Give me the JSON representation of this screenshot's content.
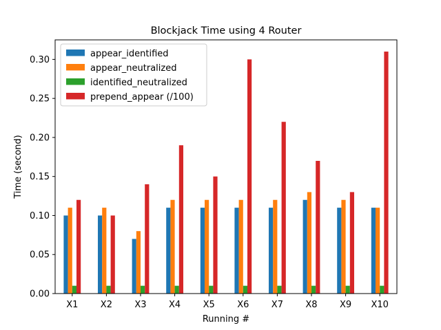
{
  "chart_data": {
    "type": "bar",
    "title": "Blockjack Time using 4 Router",
    "xlabel": "Running #",
    "ylabel": "Time (second)",
    "categories": [
      "X1",
      "X2",
      "X3",
      "X4",
      "X5",
      "X6",
      "X7",
      "X8",
      "X9",
      "X10"
    ],
    "ylim": [
      0,
      0.325
    ],
    "yticks": [
      "0.00",
      "0.05",
      "0.10",
      "0.15",
      "0.20",
      "0.25",
      "0.30"
    ],
    "legend_position": "top-left",
    "grid": false,
    "series": [
      {
        "name": "appear_identified",
        "color": "#1f77b4",
        "values": [
          0.1,
          0.1,
          0.07,
          0.11,
          0.11,
          0.11,
          0.11,
          0.12,
          0.11,
          0.11
        ]
      },
      {
        "name": "appear_neutralized",
        "color": "#ff7f0e",
        "values": [
          0.11,
          0.11,
          0.08,
          0.12,
          0.12,
          0.12,
          0.12,
          0.13,
          0.12,
          0.11
        ]
      },
      {
        "name": "identified_neutralized",
        "color": "#2ca02c",
        "values": [
          0.01,
          0.01,
          0.01,
          0.01,
          0.01,
          0.01,
          0.01,
          0.01,
          0.01,
          0.01
        ]
      },
      {
        "name": "prepend_appear (/100)",
        "color": "#d62728",
        "values": [
          0.12,
          0.1,
          0.14,
          0.19,
          0.15,
          0.3,
          0.22,
          0.17,
          0.13,
          0.31
        ]
      }
    ]
  }
}
